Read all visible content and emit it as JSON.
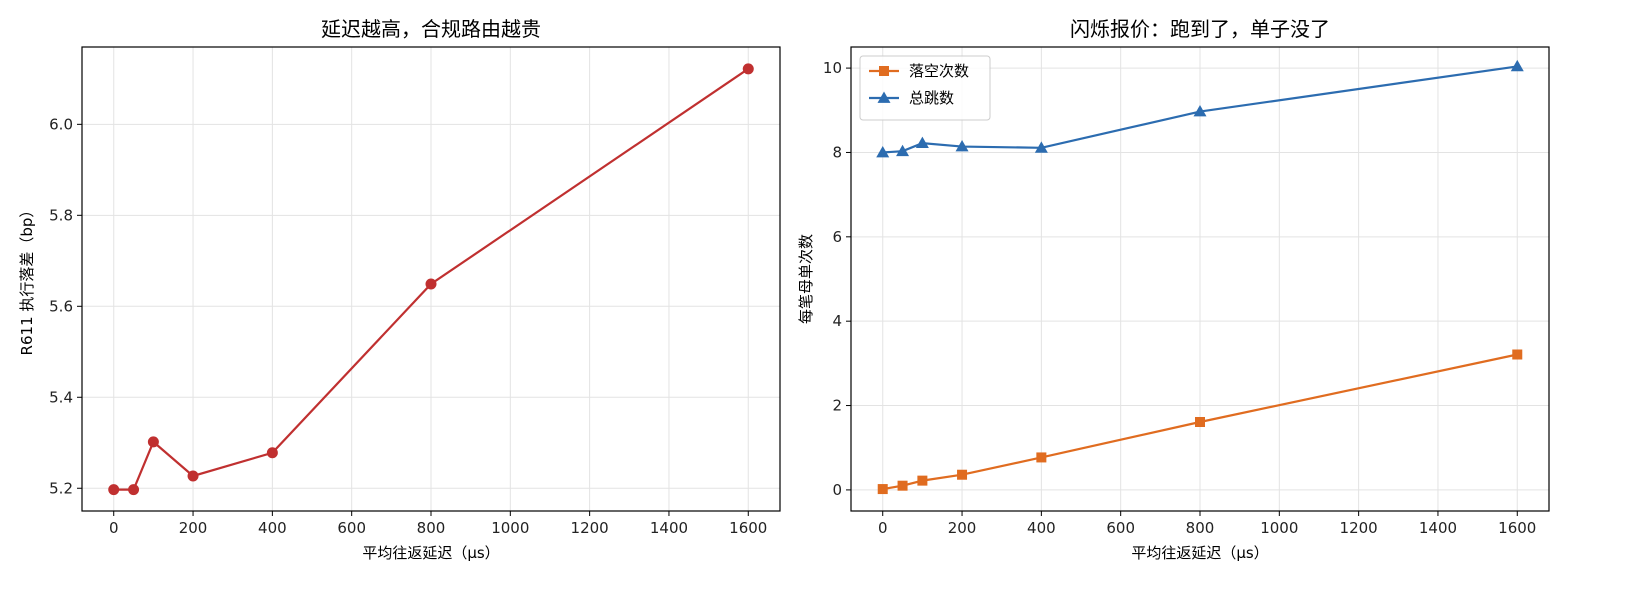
{
  "chart_data": [
    {
      "type": "line",
      "title": "延迟越高，合规路由越贵",
      "xlabel": "平均往返延迟（μs）",
      "ylabel": "R611 执行落差（bp）",
      "xlim": [
        -80,
        1680
      ],
      "ylim": [
        5.15,
        6.17
      ],
      "xticks": [
        0,
        200,
        400,
        600,
        800,
        1000,
        1200,
        1400,
        1600
      ],
      "yticks": [
        5.2,
        5.4,
        5.6,
        5.8,
        6.0
      ],
      "ytick_labels": [
        "5.2",
        "5.4",
        "5.6",
        "5.8",
        "6.0"
      ],
      "grid": true,
      "series": [
        {
          "color": "#c03030",
          "marker": "circle",
          "x": [
            0,
            50,
            100,
            200,
            400,
            800,
            1600
          ],
          "y": [
            5.197,
            5.197,
            5.302,
            5.227,
            5.278,
            5.649,
            6.122
          ]
        }
      ]
    },
    {
      "type": "line",
      "title": "闪烁报价：跑到了，单子没了",
      "xlabel": "平均往返延迟（μs）",
      "ylabel": "每笔母单次数",
      "xlim": [
        -80,
        1680
      ],
      "ylim": [
        -0.5,
        10.5
      ],
      "xticks": [
        0,
        200,
        400,
        600,
        800,
        1000,
        1200,
        1400,
        1600
      ],
      "yticks": [
        0,
        2,
        4,
        6,
        8,
        10
      ],
      "ytick_labels": [
        "0",
        "2",
        "4",
        "6",
        "8",
        "10"
      ],
      "grid": true,
      "legend": "top-left",
      "series": [
        {
          "name": "落空次数",
          "color": "#e06c20",
          "marker": "square",
          "x": [
            0,
            50,
            100,
            200,
            400,
            800,
            1600
          ],
          "y": [
            0.02,
            0.1,
            0.22,
            0.36,
            0.77,
            1.61,
            3.21
          ]
        },
        {
          "name": "总跳数",
          "color": "#2c6cb0",
          "marker": "triangle",
          "x": [
            0,
            50,
            100,
            200,
            400,
            800,
            1600
          ],
          "y": [
            8.0,
            8.03,
            8.22,
            8.14,
            8.11,
            8.97,
            10.04
          ]
        }
      ]
    }
  ]
}
